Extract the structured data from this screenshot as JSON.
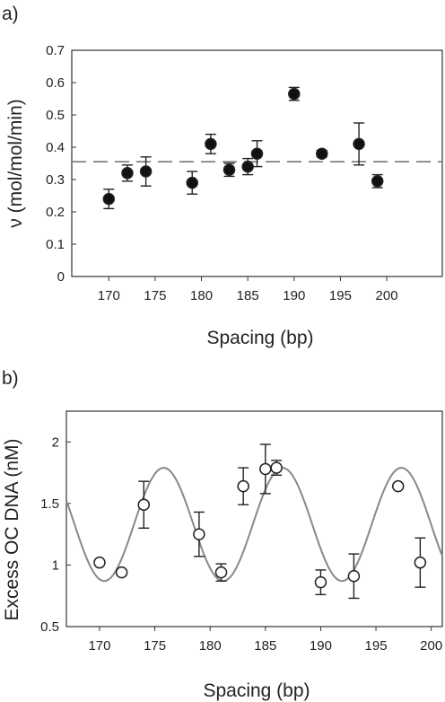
{
  "chart_data": [
    {
      "panel_label": "a)",
      "type": "scatter",
      "xlabel": "Spacing (bp)",
      "ylabel": "ν (mol/mol/min)",
      "xlim": [
        166,
        206
      ],
      "ylim": [
        0,
        0.7
      ],
      "xticks": [
        170,
        175,
        180,
        185,
        190,
        195,
        200
      ],
      "yticks": [
        0,
        0.1,
        0.2,
        0.3,
        0.4,
        0.5,
        0.6,
        0.7
      ],
      "ytick_labels": [
        "0",
        "0.1",
        "0.2",
        "0.3",
        "0.4",
        "0.5",
        "0.6",
        "0.7"
      ],
      "marker": "filled-circle",
      "points": [
        {
          "x": 170,
          "y": 0.24,
          "err": 0.03
        },
        {
          "x": 172,
          "y": 0.32,
          "err": 0.025
        },
        {
          "x": 174,
          "y": 0.325,
          "err": 0.045
        },
        {
          "x": 179,
          "y": 0.29,
          "err": 0.035
        },
        {
          "x": 181,
          "y": 0.41,
          "err": 0.03
        },
        {
          "x": 183,
          "y": 0.33,
          "err": 0.02
        },
        {
          "x": 185,
          "y": 0.34,
          "err": 0.025
        },
        {
          "x": 186,
          "y": 0.38,
          "err": 0.04
        },
        {
          "x": 190,
          "y": 0.565,
          "err": 0.02
        },
        {
          "x": 193,
          "y": 0.38,
          "err": 0.01
        },
        {
          "x": 197,
          "y": 0.41,
          "err": 0.065
        },
        {
          "x": 199,
          "y": 0.295,
          "err": 0.02
        }
      ],
      "reference_line": {
        "y": 0.355,
        "style": "dashed",
        "color": "#777777"
      }
    },
    {
      "panel_label": "b)",
      "type": "scatter",
      "xlabel": "Spacing (bp)",
      "ylabel": "Excess OC DNA (nM)",
      "xlim": [
        167,
        201
      ],
      "ylim": [
        0.5,
        2.25
      ],
      "xticks": [
        170,
        175,
        180,
        185,
        190,
        195,
        200
      ],
      "yticks": [
        0.5,
        1,
        1.5,
        2
      ],
      "ytick_labels": [
        "0.5",
        "1",
        "1.5",
        "2"
      ],
      "marker": "open-circle",
      "points": [
        {
          "x": 170,
          "y": 1.02,
          "err": 0
        },
        {
          "x": 172,
          "y": 0.94,
          "err": 0.02
        },
        {
          "x": 174,
          "y": 1.49,
          "err": 0.19
        },
        {
          "x": 179,
          "y": 1.25,
          "err": 0.18
        },
        {
          "x": 181,
          "y": 0.94,
          "err": 0.07
        },
        {
          "x": 183,
          "y": 1.64,
          "err": 0.15
        },
        {
          "x": 185,
          "y": 1.78,
          "err": 0.2
        },
        {
          "x": 186,
          "y": 1.79,
          "err": 0.06
        },
        {
          "x": 190,
          "y": 0.86,
          "err": 0.1
        },
        {
          "x": 193,
          "y": 0.91,
          "err": 0.18
        },
        {
          "x": 197,
          "y": 1.64,
          "err": 0
        },
        {
          "x": 199,
          "y": 1.02,
          "err": 0.2
        }
      ],
      "fit_curve": {
        "type": "sinusoid",
        "mean": 1.33,
        "amplitude": 0.46,
        "period_bp": 10.75,
        "peak_x": 175.8,
        "color": "#888888"
      }
    }
  ]
}
